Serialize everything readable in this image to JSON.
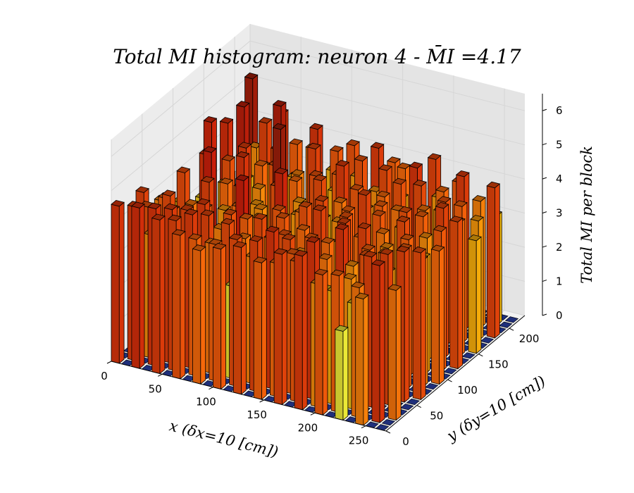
{
  "chart_data": {
    "type": "bar3d",
    "title": "Total MI histogram: neuron 4 - M̄I =4.17",
    "xlabel": "x (δx=10 [cm])",
    "ylabel": "y (δy=10 [cm])",
    "zlabel": "Total MI per block",
    "xlim": [
      0,
      270
    ],
    "ylim": [
      0,
      225
    ],
    "zlim": [
      0,
      6.5
    ],
    "x_ticks": [
      "0",
      "50",
      "100",
      "150",
      "200",
      "250"
    ],
    "y_ticks": [
      "0",
      "50",
      "100",
      "150",
      "200"
    ],
    "z_ticks": [
      "0",
      "1",
      "2",
      "3",
      "4",
      "5",
      "6"
    ],
    "grid": true,
    "block_size": 10,
    "colormap": "hot",
    "empty_block_color": "#1f2f7a",
    "heights": [
      [
        4.6,
        0,
        0,
        0,
        4.4,
        0,
        0,
        3.7,
        0,
        0,
        3.2,
        0,
        0,
        0,
        0,
        4.8,
        0,
        0,
        2.8,
        0,
        0,
        0
      ],
      [
        0,
        4.5,
        0,
        4.2,
        0,
        0,
        4.0,
        0,
        0,
        4.3,
        0,
        0,
        3.1,
        0,
        0,
        0,
        4.7,
        0,
        0,
        0,
        5.4,
        0
      ],
      [
        4.7,
        0,
        3.6,
        0,
        0,
        4.3,
        0,
        0,
        3.4,
        0,
        0,
        4.6,
        0,
        0,
        3.3,
        0,
        0,
        5.1,
        0,
        3.6,
        0,
        0
      ],
      [
        0,
        4.6,
        0,
        0,
        4.1,
        0,
        0,
        3.8,
        0,
        0,
        4.9,
        0,
        0,
        4.2,
        0,
        0,
        3.2,
        0,
        0,
        4.4,
        0,
        0
      ],
      [
        4.5,
        0,
        4.5,
        0,
        0,
        3.6,
        0,
        0,
        4.4,
        0,
        0,
        3.9,
        0,
        0,
        4.5,
        0,
        0,
        3.5,
        0,
        0,
        4.6,
        0
      ],
      [
        0,
        4.4,
        0,
        4.4,
        0,
        0,
        4.0,
        0,
        0,
        3.5,
        0,
        0,
        4.6,
        0,
        0,
        3.9,
        0,
        0,
        5.2,
        0,
        0,
        0
      ],
      [
        4.2,
        0,
        4.5,
        0,
        4.5,
        0,
        0,
        3.3,
        0,
        0,
        4.1,
        0,
        0,
        3.6,
        0,
        0,
        4.3,
        0,
        0,
        4.0,
        0,
        0
      ],
      [
        0,
        4.0,
        0,
        4.4,
        0,
        3.7,
        0,
        0,
        3.9,
        0,
        0,
        3.5,
        0,
        0,
        4.2,
        0,
        0,
        3.4,
        0,
        0,
        3.8,
        0
      ],
      [
        3.9,
        0,
        3.8,
        0,
        0,
        4.2,
        0,
        4.9,
        0,
        0,
        3.6,
        0,
        0,
        5.5,
        0,
        0,
        3.7,
        0,
        0,
        4.6,
        0,
        0
      ],
      [
        0,
        4.0,
        0,
        4.3,
        0,
        0,
        4.0,
        0,
        3.7,
        0,
        0,
        4.2,
        0,
        0,
        3.9,
        0,
        0,
        4.4,
        0,
        0,
        3.3,
        0
      ],
      [
        4.1,
        0,
        2.7,
        0,
        3.8,
        0,
        0,
        3.4,
        0,
        0,
        4.8,
        0,
        0,
        3.5,
        0,
        0,
        3.6,
        0,
        0,
        4.1,
        0,
        0
      ],
      [
        0,
        4.3,
        0,
        3.2,
        0,
        4.3,
        0,
        0,
        4.1,
        0,
        0,
        3.5,
        0,
        0,
        4.2,
        0,
        0,
        3.3,
        0,
        0,
        4.2,
        0
      ],
      [
        4.3,
        0,
        3.7,
        0,
        0,
        3.8,
        0,
        4.1,
        0,
        0,
        3.8,
        0,
        0,
        4.3,
        0,
        0,
        4.0,
        0,
        0,
        3.5,
        0,
        0
      ],
      [
        0,
        4.4,
        0,
        3.4,
        0,
        0,
        3.6,
        0,
        0,
        4.2,
        0,
        0,
        3.4,
        0,
        0,
        4.5,
        0,
        0,
        4.2,
        0,
        0,
        0
      ],
      [
        4.0,
        0,
        4.6,
        0,
        4.2,
        0,
        0,
        3.9,
        0,
        0,
        4.3,
        0,
        0,
        3.8,
        0,
        0,
        3.3,
        0,
        0,
        4.5,
        0,
        0
      ],
      [
        0,
        3.9,
        0,
        4.3,
        0,
        3.6,
        0,
        0,
        4.4,
        0,
        0,
        3.6,
        0,
        0,
        4.1,
        0,
        0,
        3.6,
        0,
        0,
        4.0,
        0
      ],
      [
        4.4,
        0,
        4.1,
        0,
        0,
        4.1,
        0,
        0,
        3.5,
        0,
        0,
        4.0,
        0,
        0,
        3.6,
        0,
        0,
        4.3,
        0,
        0,
        3.9,
        0
      ],
      [
        0,
        4.1,
        0,
        3.6,
        0,
        0,
        3.9,
        0,
        0,
        4.2,
        0,
        0,
        4.4,
        0,
        0,
        3.9,
        0,
        0,
        3.4,
        0,
        0,
        0
      ],
      [
        4.5,
        0,
        4.6,
        0,
        3.8,
        0,
        0,
        4.4,
        0,
        0,
        3.5,
        0,
        0,
        4.0,
        0,
        0,
        4.2,
        0,
        0,
        3.7,
        0,
        0
      ],
      [
        0,
        3.6,
        0,
        3.1,
        0,
        4.6,
        0,
        0,
        3.9,
        0,
        0,
        4.1,
        0,
        0,
        3.8,
        0,
        0,
        4.6,
        0,
        0,
        4.4,
        0
      ],
      [
        4.1,
        0,
        3.3,
        0,
        0,
        3.6,
        0,
        4.4,
        0,
        0,
        3.8,
        0,
        0,
        3.5,
        0,
        0,
        4.3,
        0,
        0,
        3.5,
        0,
        0
      ],
      [
        0,
        4.0,
        0,
        3.6,
        0,
        0,
        4.0,
        0,
        0,
        3.6,
        0,
        0,
        4.2,
        0,
        0,
        3.8,
        0,
        0,
        3.9,
        0,
        0,
        0
      ],
      [
        2.6,
        0,
        3.1,
        0,
        4.2,
        0,
        0,
        3.8,
        0,
        0,
        4.3,
        0,
        0,
        4.0,
        0,
        0,
        3.7,
        0,
        0,
        4.1,
        0,
        0
      ],
      [
        0,
        3.8,
        0,
        4.4,
        0,
        0,
        3.5,
        0,
        0,
        4.0,
        0,
        0,
        3.6,
        0,
        0,
        4.2,
        0,
        0,
        4.5,
        0,
        0,
        0
      ],
      [
        3.7,
        0,
        0,
        0,
        4.4,
        0,
        0,
        4.1,
        0,
        0,
        3.4,
        0,
        0,
        4.4,
        0,
        0,
        4.0,
        0,
        0,
        3.7,
        0,
        0
      ],
      [
        0,
        4.6,
        0,
        0,
        0,
        4.4,
        0,
        0,
        3.7,
        0,
        0,
        4.1,
        0,
        0,
        3.9,
        0,
        0,
        3.5,
        0,
        0,
        3.2,
        0
      ],
      [
        0,
        0,
        3.8,
        0,
        0,
        0,
        4.3,
        0,
        0,
        3.9,
        0,
        0,
        4.3,
        0,
        0,
        3.3,
        0,
        0,
        4.4,
        0,
        0,
        0
      ]
    ]
  }
}
